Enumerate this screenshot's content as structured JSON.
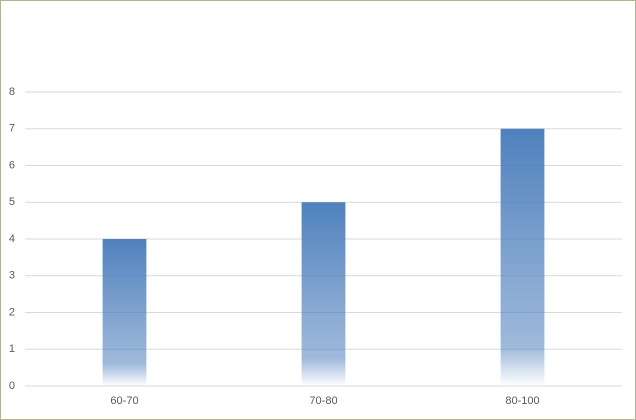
{
  "chart_data": {
    "type": "bar",
    "categories": [
      "60-70",
      "70-80",
      "80-100"
    ],
    "values": [
      4,
      5,
      7
    ],
    "color": "#4f81bd",
    "ylim": [
      0,
      8
    ],
    "yticks": [
      0,
      1,
      2,
      3,
      4,
      5,
      6,
      7,
      8
    ],
    "grid": true
  }
}
